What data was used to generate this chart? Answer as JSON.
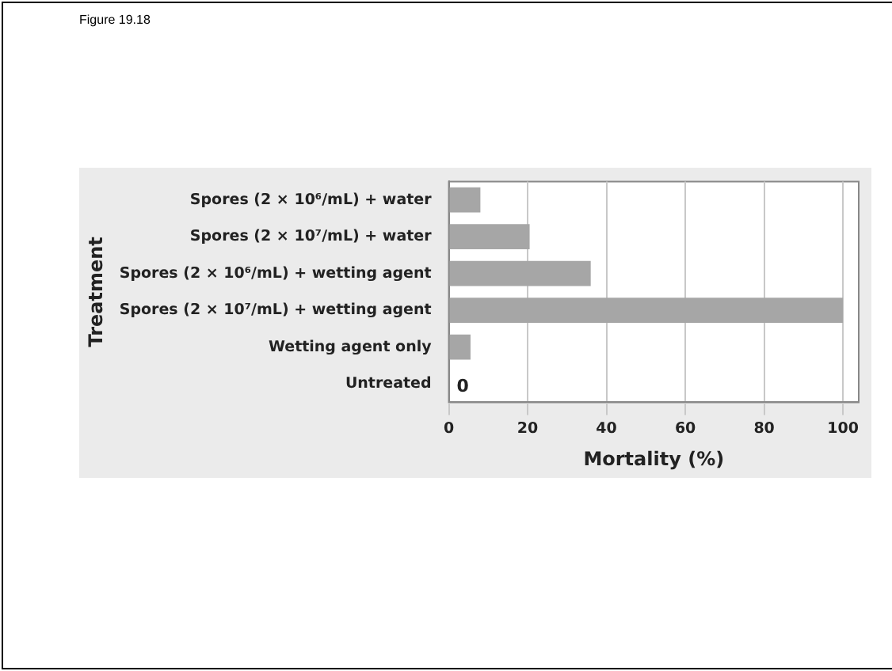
{
  "chart_data": {
    "type": "bar",
    "orientation": "horizontal",
    "title": "Figure 19.18",
    "xlabel": "Mortality (%)",
    "ylabel": "Treatment",
    "categories": [
      "Spores (2 × 10⁶/mL) + water",
      "Spores (2 × 10⁷/mL) + water",
      "Spores (2 × 10⁶/mL) + wetting agent",
      "Spores (2 × 10⁷/mL) + wetting agent",
      "Wetting agent only",
      "Untreated"
    ],
    "values": [
      8,
      20.5,
      36,
      100,
      5.5,
      0
    ],
    "color": "#a6a6a6",
    "value_labels": [
      null,
      null,
      null,
      null,
      null,
      "0"
    ],
    "xlim": [
      0,
      104
    ],
    "xticks": [
      0,
      20,
      40,
      60,
      80,
      100
    ],
    "grid": "x",
    "legend": false
  }
}
